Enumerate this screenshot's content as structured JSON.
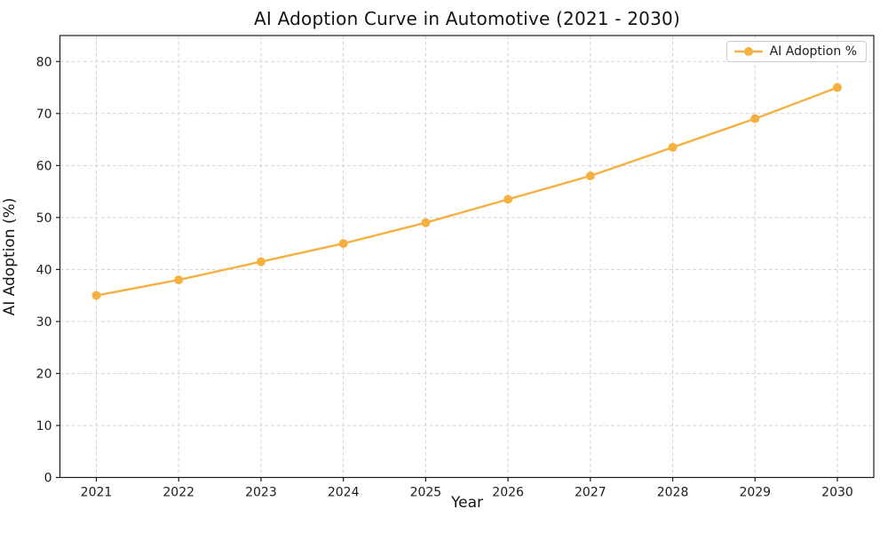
{
  "chart_data": {
    "type": "line",
    "title": "AI Adoption Curve in Automotive (2021 - 2030)",
    "xlabel": "Year",
    "ylabel": "AI Adoption (%)",
    "categories": [
      "2021",
      "2022",
      "2023",
      "2024",
      "2025",
      "2026",
      "2027",
      "2028",
      "2029",
      "2030"
    ],
    "series": [
      {
        "name": "AI Adoption %",
        "values": [
          35,
          38,
          41.5,
          45,
          49,
          53.5,
          58,
          63.5,
          69,
          75
        ]
      }
    ],
    "ylim": [
      0,
      85
    ],
    "yticks": [
      0,
      10,
      20,
      30,
      40,
      50,
      60,
      70,
      80
    ],
    "grid": true,
    "grid_style": "dashed",
    "legend_position": "upper right",
    "line_color": "#F5B042",
    "marker": "circle",
    "grid_color": "#d4d4d4",
    "spine_color": "#1a1a1a",
    "tick_text_color": "#1c1c1c"
  }
}
